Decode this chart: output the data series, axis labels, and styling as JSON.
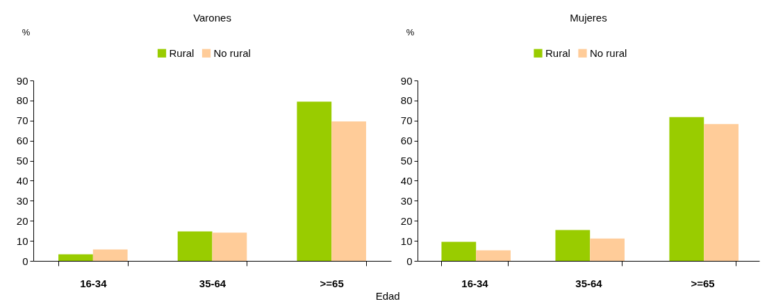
{
  "chart_data": [
    {
      "type": "bar",
      "title": "Varones",
      "ylabel": "%",
      "xlabel": "Edad",
      "categories": [
        "16-34",
        "35-64",
        ">=65"
      ],
      "series": [
        {
          "name": "Rural",
          "color": "#99cc00",
          "values": [
            3.3,
            14.7,
            79.4
          ]
        },
        {
          "name": "No rural",
          "color": "#ffcc99",
          "values": [
            5.7,
            14.1,
            69.6
          ]
        }
      ],
      "ylim": [
        0,
        90
      ],
      "yticks": [
        0,
        10,
        20,
        30,
        40,
        50,
        60,
        70,
        80,
        90
      ],
      "legend": "top",
      "grid": false
    },
    {
      "type": "bar",
      "title": "Mujeres",
      "ylabel": "%",
      "categories": [
        "16-34",
        "35-64",
        ">=65"
      ],
      "series": [
        {
          "name": "Rural",
          "color": "#99cc00",
          "values": [
            9.5,
            15.4,
            71.7
          ]
        },
        {
          "name": "No rural",
          "color": "#ffcc99",
          "values": [
            5.3,
            11.2,
            68.3
          ]
        }
      ],
      "ylim": [
        0,
        90
      ],
      "yticks": [
        0,
        10,
        20,
        30,
        40,
        50,
        60,
        70,
        80,
        90
      ],
      "legend": "top",
      "grid": false
    }
  ]
}
